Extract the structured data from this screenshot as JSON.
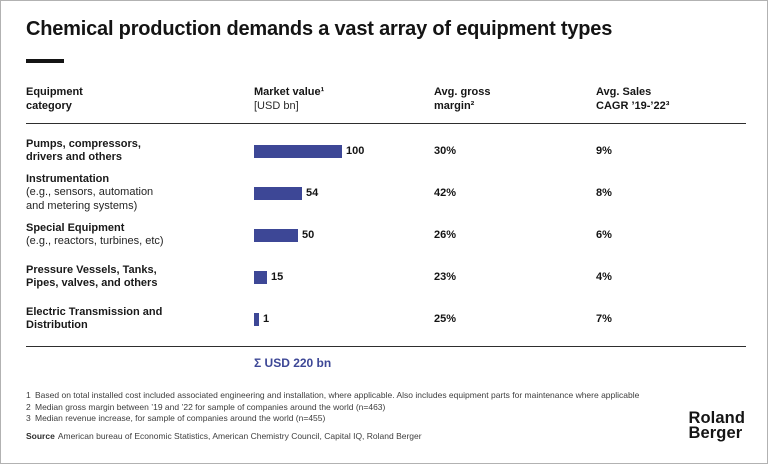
{
  "header": {
    "title": "Chemical production demands a vast array of equipment types"
  },
  "table": {
    "headers": [
      {
        "title": "Equipment\ncategory",
        "unit": ""
      },
      {
        "title": "Market value¹",
        "unit": "[USD bn]"
      },
      {
        "title": "Avg. gross\nmargin²",
        "unit": ""
      },
      {
        "title": "Avg. Sales\nCAGR ’19-’22³",
        "unit": ""
      }
    ],
    "rows": [
      {
        "title": "Pumps, compressors,\ndrivers and others",
        "subtitle": "",
        "market_value": 100,
        "gross_margin": "30%",
        "sales_cagr": "9%"
      },
      {
        "title": "Instrumentation",
        "subtitle": "(e.g., sensors, automation\nand metering systems)",
        "market_value": 54,
        "gross_margin": "42%",
        "sales_cagr": "8%"
      },
      {
        "title": "Special Equipment",
        "subtitle": "(e.g., reactors, turbines, etc)",
        "market_value": 50,
        "gross_margin": "26%",
        "sales_cagr": "6%"
      },
      {
        "title": "Pressure Vessels, Tanks,\nPipes, valves, and others",
        "subtitle": "",
        "market_value": 15,
        "gross_margin": "23%",
        "sales_cagr": "4%"
      },
      {
        "title": "Electric Transmission and\nDistribution",
        "subtitle": "",
        "market_value": 1,
        "gross_margin": "25%",
        "sales_cagr": "7%"
      }
    ],
    "total": "Σ USD 220 bn"
  },
  "footnotes": [
    {
      "num": "1",
      "text": "Based on total installed cost included associated engineering and installation, where applicable. Also includes equipment parts for maintenance where applicable"
    },
    {
      "num": "2",
      "text": "Median gross margin between ’19 and ’22 for sample of companies around the world (n=463)"
    },
    {
      "num": "3",
      "text": "Median revenue increase, for sample of companies around the world (n=455)"
    }
  ],
  "footer": {
    "source_label": "Source",
    "source_text": "American bureau of Economic Statistics, American Chemistry Council, Capital IQ, Roland Berger"
  },
  "brand": {
    "line1": "Roland",
    "line2": "Berger"
  },
  "colors": {
    "accent_bar": "#3d4796",
    "text": "#141414",
    "rule": "#2e2e2e"
  },
  "chart_data": {
    "type": "bar",
    "orientation": "horizontal",
    "title": "Chemical production demands a vast array of equipment types",
    "categories": [
      "Pumps, compressors, drivers and others",
      "Instrumentation (e.g., sensors, automation and metering systems)",
      "Special Equipment (e.g., reactors, turbines, etc)",
      "Pressure Vessels, Tanks, Pipes, valves, and others",
      "Electric Transmission and Distribution"
    ],
    "series": [
      {
        "name": "Market value [USD bn]",
        "values": [
          100,
          54,
          50,
          15,
          1
        ]
      },
      {
        "name": "Avg. gross margin (%)",
        "values": [
          30,
          42,
          26,
          23,
          25
        ]
      },
      {
        "name": "Avg. Sales CAGR '19-'22 (%)",
        "values": [
          9,
          8,
          6,
          4,
          7
        ]
      }
    ],
    "xlim": [
      0,
      100
    ],
    "value_labels": true,
    "legend_position": "none",
    "grid": false,
    "total_label": "Σ USD 220 bn",
    "total_value_usd_bn": 220
  }
}
